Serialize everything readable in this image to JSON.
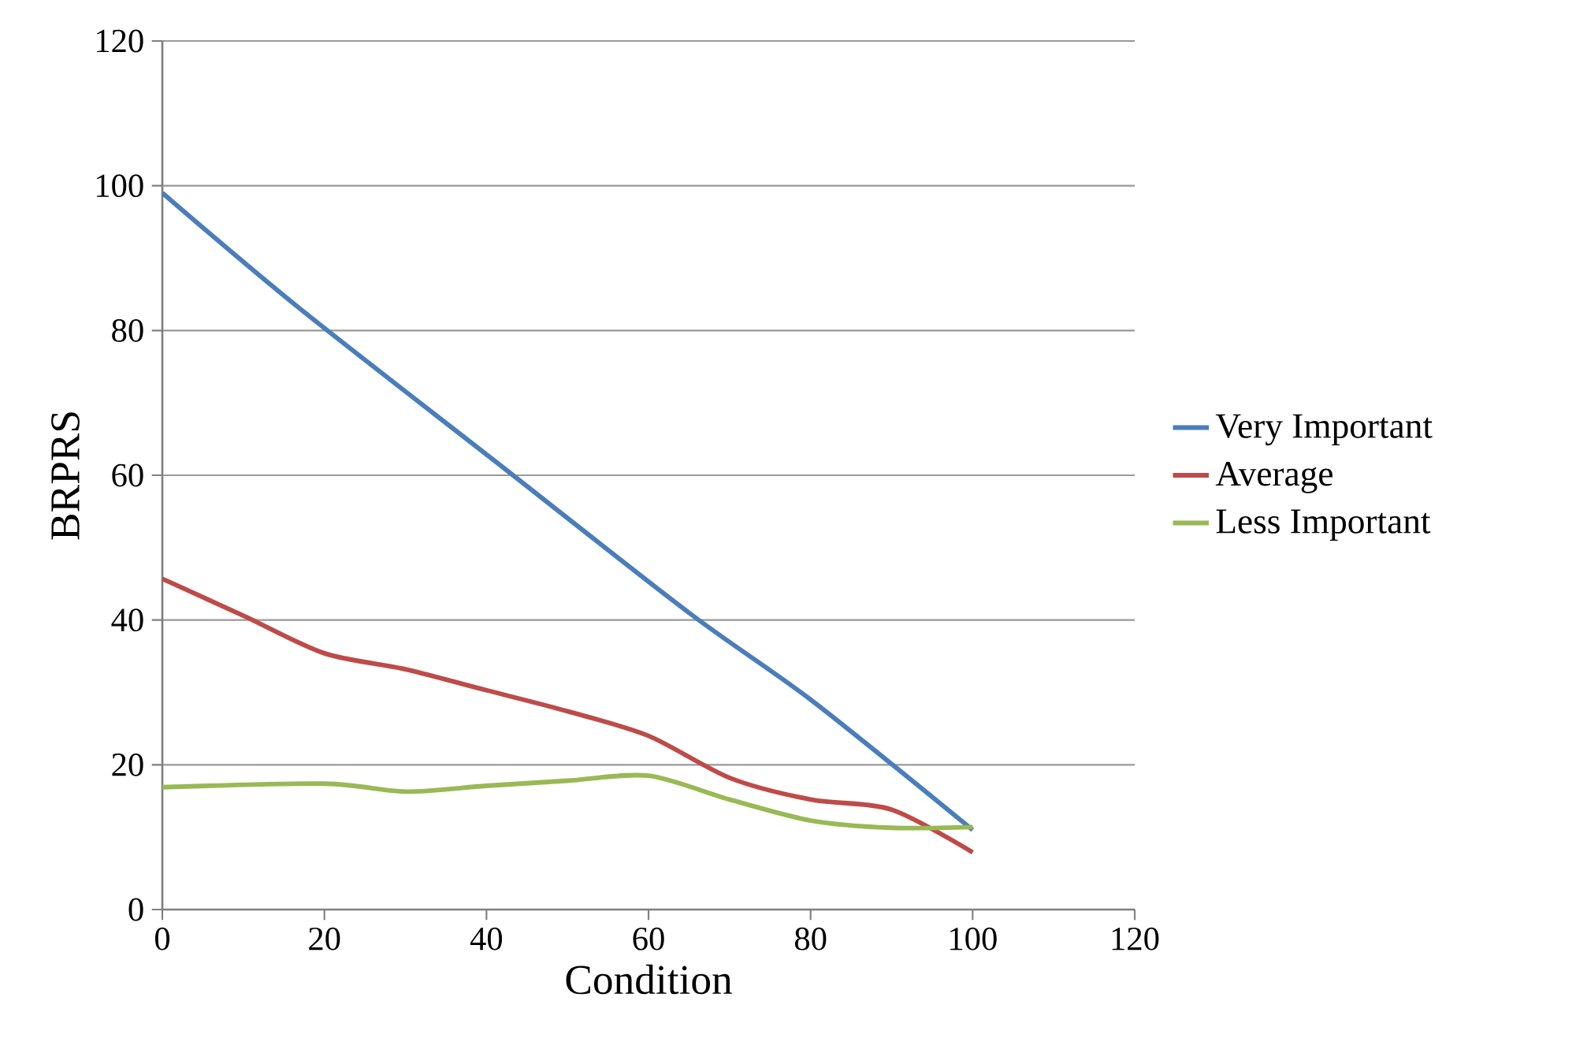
{
  "chart_data": {
    "type": "line",
    "xlabel": "Condition",
    "ylabel": "BRPRS",
    "xlim": [
      0,
      120
    ],
    "ylim": [
      0,
      120
    ],
    "xticks": [
      0,
      20,
      40,
      60,
      80,
      100,
      120
    ],
    "yticks": [
      0,
      20,
      40,
      60,
      80,
      100,
      120
    ],
    "grid": "y",
    "legend": "right",
    "marker": "none",
    "line_style": "solid",
    "series": [
      {
        "name": "Very Important",
        "color": "#4a7ebb",
        "x": [
          0,
          17,
          41,
          65,
          80,
          100
        ],
        "values": [
          99,
          83,
          62,
          41,
          29,
          11
        ]
      },
      {
        "name": "Average",
        "color": "#be4b48",
        "x": [
          0,
          10,
          20,
          30,
          40,
          50,
          60,
          70,
          80,
          90,
          100
        ],
        "values": [
          45.7,
          40.6,
          35.4,
          33.2,
          30.3,
          27.4,
          24,
          18.2,
          15.2,
          13.8,
          7.9
        ]
      },
      {
        "name": "Less Important",
        "color": "#98b954",
        "x": [
          0,
          20,
          30,
          40,
          50,
          60,
          70,
          80,
          90,
          100
        ],
        "values": [
          16.9,
          17.4,
          16.3,
          17.1,
          17.8,
          18.5,
          15.2,
          12.3,
          11.3,
          11.4
        ]
      }
    ]
  }
}
